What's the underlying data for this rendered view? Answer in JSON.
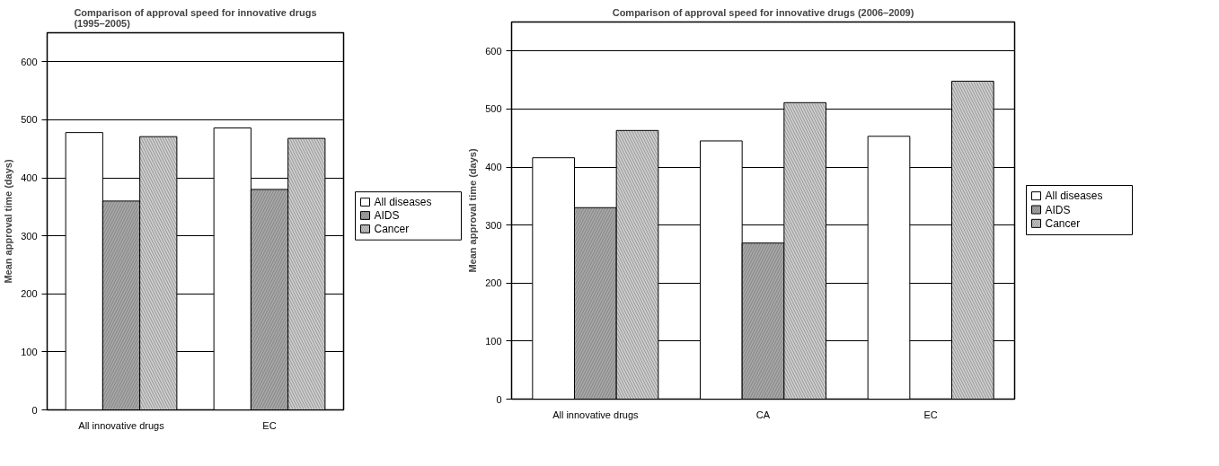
{
  "chart_data": [
    {
      "type": "bar",
      "title": "Comparison of approval speed for innovative drugs (1995–2005)",
      "ylabel": "Mean approval time (days)",
      "categories": [
        "All innovative drugs",
        "EC"
      ],
      "ylim": [
        0,
        650
      ],
      "yticks": [
        0,
        100,
        200,
        300,
        400,
        500,
        600
      ],
      "grid": "y",
      "legend": "right",
      "series": [
        {
          "name": "All diseases",
          "color": "#ffffff",
          "values": [
            478,
            486
          ]
        },
        {
          "name": "AIDS",
          "color": "#a6a6a6",
          "values": [
            360,
            380
          ]
        },
        {
          "name": "Cancer",
          "color": "#cccccc",
          "values": [
            471,
            468
          ]
        }
      ]
    },
    {
      "type": "bar",
      "title": "Comparison of approval speed for innovative drugs (2006–2009)",
      "ylabel": "Mean approval time (days)",
      "categories": [
        "All innovative drugs",
        "CA",
        "EC"
      ],
      "ylim": [
        0,
        650
      ],
      "yticks": [
        0,
        100,
        200,
        300,
        400,
        500,
        600
      ],
      "grid": "y",
      "legend": "right",
      "series": [
        {
          "name": "All diseases",
          "color": "#ffffff",
          "values": [
            416,
            445,
            453
          ]
        },
        {
          "name": "AIDS",
          "color": "#a6a6a6",
          "values": [
            330,
            269,
            null
          ]
        },
        {
          "name": "Cancer",
          "color": "#cccccc",
          "values": [
            463,
            511,
            548
          ]
        }
      ]
    }
  ]
}
